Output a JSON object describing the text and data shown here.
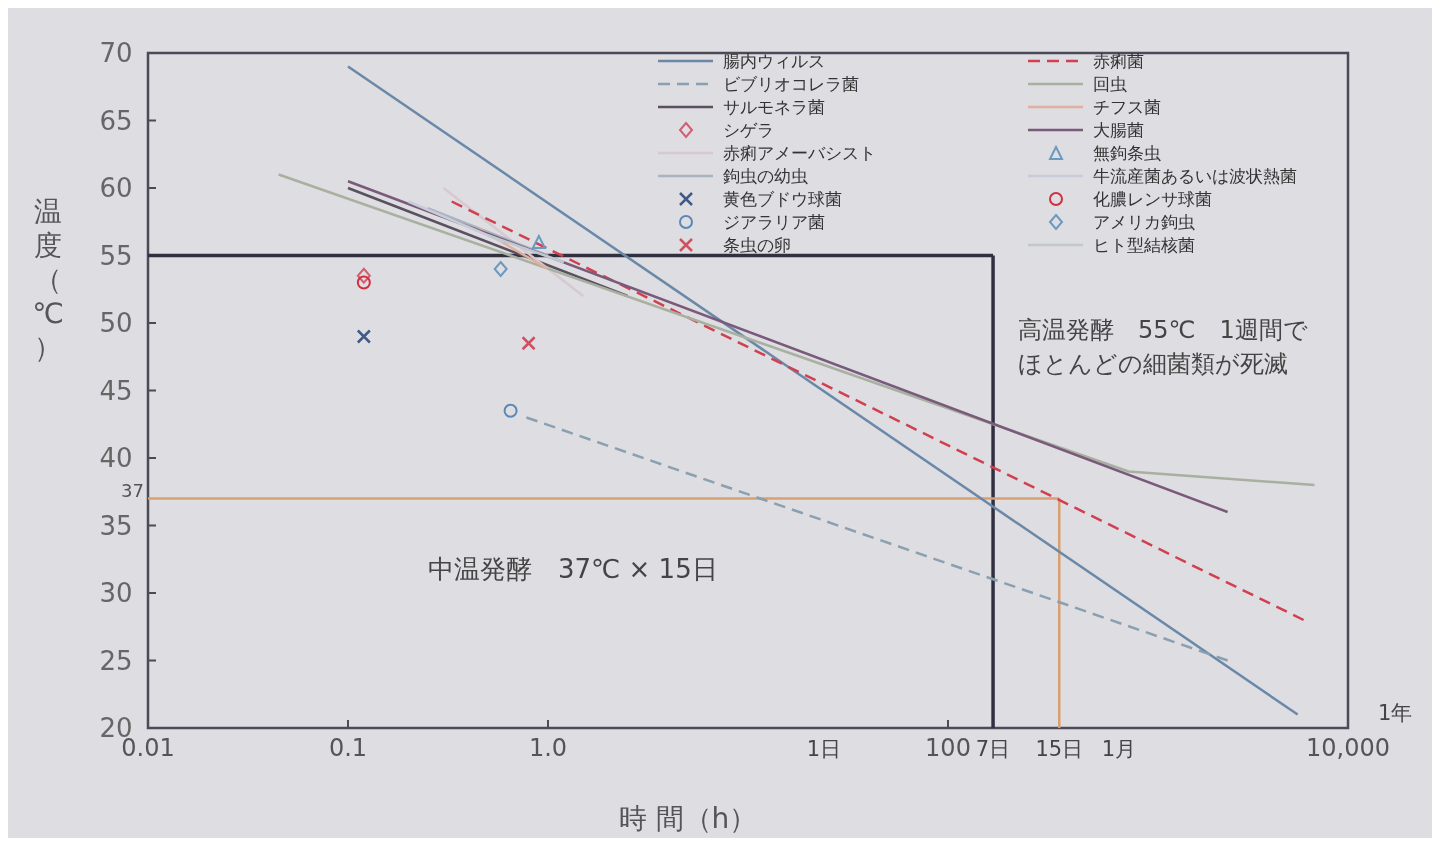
{
  "chart_data": {
    "type": "line",
    "xlabel": "時 間（h）",
    "ylabel": "温度（℃）",
    "log": "x",
    "xlim": [
      0.01,
      10000
    ],
    "ylim": [
      20,
      70
    ],
    "xticks": [
      {
        "value": 0.01,
        "label": "0.01"
      },
      {
        "value": 0.1,
        "label": "0.1"
      },
      {
        "value": 1,
        "label": "1.0"
      },
      100,
      {
        "value": 10000,
        "label": "10,000"
      }
    ],
    "yticks": [
      20,
      25,
      30,
      35,
      40,
      45,
      50,
      55,
      60,
      65,
      70
    ],
    "grid": false,
    "legend": "top right",
    "series": [
      {
        "name": "腸内ウィルス",
        "color": "#6a88a8",
        "x": [
          0.1,
          5600
        ],
        "values": [
          69,
          21
        ]
      },
      {
        "name": "ビブリオコレラ菌",
        "color": "#8aa0b0",
        "line_style": "dashed",
        "x": [
          0.78,
          2500
        ],
        "values": [
          43,
          25
        ]
      },
      {
        "name": "サルモネラ菌",
        "color": "#5a5060",
        "x": [
          0.1,
          2.5
        ],
        "values": [
          60,
          52
        ]
      },
      {
        "name": "シゲラ",
        "type": "scatter",
        "marker": "diamond",
        "color": "#d06070",
        "x": [
          0.12
        ],
        "values": [
          53.5
        ]
      },
      {
        "name": "赤痢アメーバシスト",
        "color": "#d8c8d0",
        "x": [
          0.3,
          1.5
        ],
        "values": [
          60,
          52
        ]
      },
      {
        "name": "鉤虫の幼虫",
        "color": "#a8b4c0",
        "x": [
          0.25,
          1
        ],
        "values": [
          58.5,
          55
        ]
      },
      {
        "name": "黄色ブドウ球菌",
        "type": "scatter",
        "marker": "cross",
        "color": "#405a88",
        "x": [
          0.12
        ],
        "values": [
          49
        ]
      },
      {
        "name": "ジアラリア菌",
        "type": "scatter",
        "marker": "circle",
        "color": "#5a88b8",
        "x": [
          0.65
        ],
        "values": [
          43.5
        ]
      },
      {
        "name": "条虫の卵",
        "type": "scatter",
        "marker": "cross",
        "color": "#d05060",
        "x": [
          0.8
        ],
        "values": [
          48.5
        ]
      },
      {
        "name": "赤痢菌",
        "color": "#d04050",
        "line_style": "dashed",
        "x": [
          0.33,
          6000
        ],
        "values": [
          59,
          28
        ]
      },
      {
        "name": "回虫",
        "color": "#a8b0a0",
        "x": [
          0.045,
          800,
          6800
        ],
        "values": [
          61,
          39,
          38
        ]
      },
      {
        "name": "チフス菌",
        "color": "#e0b0a0",
        "x": [
          0.45,
          1
        ],
        "values": [
          57,
          54
        ]
      },
      {
        "name": "大腸菌",
        "color": "#7a5a7a",
        "x": [
          0.1,
          2500
        ],
        "values": [
          60.5,
          36
        ]
      },
      {
        "name": "無鉤条虫",
        "type": "scatter",
        "marker": "triangle",
        "color": "#6a9ac0",
        "x": [
          0.9
        ],
        "values": [
          56
        ]
      },
      {
        "name": "牛流産菌あるいは波状熱菌",
        "color": "#c8ccd8",
        "x": [
          0.2,
          0.6
        ],
        "values": [
          59,
          56
        ]
      },
      {
        "name": "化膿レンサ球菌",
        "type": "scatter",
        "marker": "circle",
        "color": "#d03040",
        "x": [
          0.12
        ],
        "values": [
          53
        ]
      },
      {
        "name": "アメリカ鉤虫",
        "type": "scatter",
        "marker": "diamond",
        "color": "#6a9ac0",
        "x": [
          0.58
        ],
        "values": [
          54
        ]
      },
      {
        "name": "ヒト型結核菌",
        "color": "#c0c8d0",
        "x": [
          0.5,
          1.2
        ],
        "values": [
          56.5,
          54.5
        ]
      }
    ],
    "ref_lines": [
      {
        "axis": "y",
        "value": 55,
        "color": "#303040"
      },
      {
        "axis": "x",
        "value": 168,
        "label": "7日",
        "color": "#303040"
      },
      {
        "axis": "y",
        "value": 37,
        "label": "37",
        "color": "#d8a070"
      },
      {
        "axis": "x",
        "value": 360,
        "label": "15日",
        "color": "#d8a070"
      }
    ],
    "annotations": [
      "中温発酵　37℃ × 15日",
      "高温発酵　55℃　1週間でほとんどの細菌類が死滅",
      "1日",
      "1月",
      "1年"
    ]
  }
}
